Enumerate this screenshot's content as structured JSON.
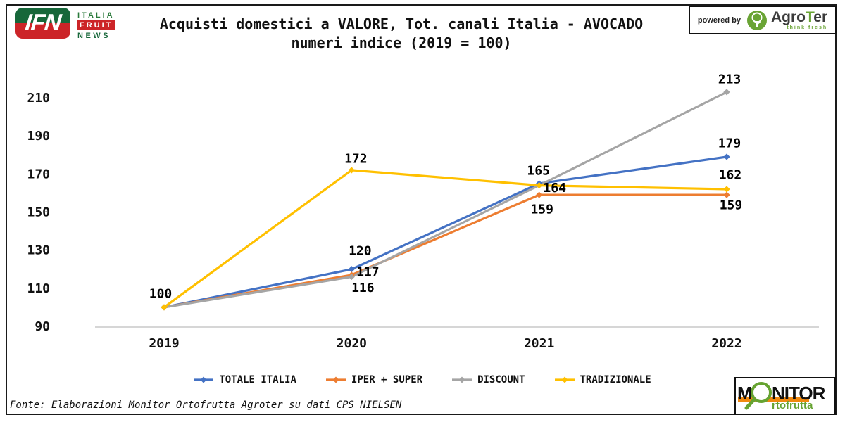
{
  "header": {
    "ifn_logo": {
      "abbr": "IFN",
      "italia": "ITALIA",
      "fruit": "FRUIT",
      "news": "NEWS"
    },
    "title_line1": "Acquisti domestici a VALORE, Tot. canali Italia - AVOCADO",
    "title_line2": "numeri indice (2019 = 100)",
    "powered_by": "powered by",
    "agroter": {
      "name_agro": "Agro",
      "name_t": "T",
      "name_er": "er",
      "tagline": "think fresh"
    }
  },
  "chart_data": {
    "type": "line",
    "title": "Acquisti domestici a VALORE, Tot. canali Italia - AVOCADO",
    "subtitle": "numeri indice (2019 = 100)",
    "categories": [
      "2019",
      "2020",
      "2021",
      "2022"
    ],
    "series": [
      {
        "name": "TOTALE ITALIA",
        "color": "#4472C4",
        "values": [
          100,
          120,
          165,
          179
        ],
        "point_labels": [
          "100",
          "120",
          "165",
          "179"
        ],
        "label_offsets": [
          [
            -5,
            -20
          ],
          [
            12,
            -27
          ],
          [
            -1,
            -19
          ],
          [
            4,
            -20
          ]
        ]
      },
      {
        "name": "IPER + SUPER",
        "color": "#ED7D31",
        "values": [
          100,
          117,
          159,
          159
        ],
        "point_labels": [
          null,
          "117",
          "159",
          "159"
        ],
        "label_offsets": [
          null,
          [
            23,
            -5
          ],
          [
            4,
            20
          ],
          [
            6,
            14
          ]
        ]
      },
      {
        "name": "DISCOUNT",
        "color": "#A5A5A5",
        "values": [
          100,
          116,
          164,
          213
        ],
        "point_labels": [
          null,
          "116",
          "164",
          "213"
        ],
        "label_offsets": [
          null,
          [
            16,
            15
          ],
          [
            22,
            3
          ],
          [
            4,
            -19
          ]
        ]
      },
      {
        "name": "TRADIZIONALE",
        "color": "#FFC000",
        "values": [
          100,
          172,
          164,
          162
        ],
        "point_labels": [
          null,
          "172",
          "164",
          "162"
        ],
        "label_offsets": [
          null,
          [
            6,
            -17
          ],
          [
            22,
            3
          ],
          [
            5,
            -21
          ]
        ]
      }
    ],
    "ylim": [
      90,
      210
    ],
    "yticks": [
      90,
      110,
      130,
      150,
      170,
      190,
      210
    ],
    "grid": false,
    "legend_position": "bottom",
    "axis_color": "#d6d6d6",
    "label_color": "#000000"
  },
  "footer": {
    "source": "Fonte: Elaborazioni Monitor Ortofrutta Agroter su dati CPS NIELSEN",
    "monitor_logo": {
      "m": "M",
      "nitor": "NITOR",
      "rtofrutta": "rtofrutta"
    }
  }
}
